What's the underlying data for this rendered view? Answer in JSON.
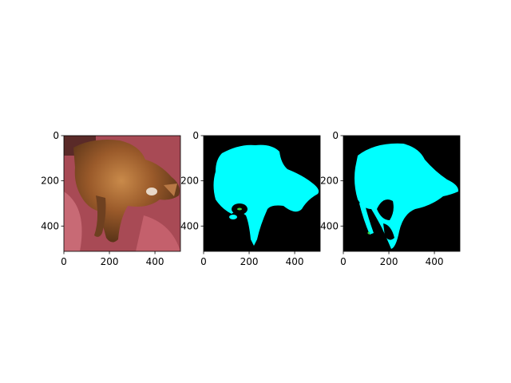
{
  "chart_data": [
    {
      "type": "image",
      "panel": "photo",
      "content": "cat-photo",
      "xlim": [
        0,
        512
      ],
      "ylim": [
        512,
        0
      ],
      "xticks": [
        0,
        200,
        400
      ],
      "yticks": [
        0,
        200,
        400
      ],
      "xtick_labels": [
        "0",
        "200",
        "400"
      ],
      "ytick_labels": [
        "0",
        "200",
        "400"
      ]
    },
    {
      "type": "image",
      "panel": "mask",
      "content": "segmentation-mask",
      "xlim": [
        0,
        512
      ],
      "ylim": [
        512,
        0
      ],
      "xticks": [
        0,
        200,
        400
      ],
      "yticks": [
        0,
        200,
        400
      ],
      "xtick_labels": [
        "0",
        "200",
        "400"
      ],
      "ytick_labels": [
        "0",
        "200",
        "400"
      ],
      "colors": {
        "background": "#000000",
        "foreground": "#00ffff",
        "minor": "#3cd13c"
      }
    },
    {
      "type": "image",
      "panel": "mask",
      "content": "segmentation-mask",
      "xlim": [
        0,
        512
      ],
      "ylim": [
        512,
        0
      ],
      "xticks": [
        0,
        200,
        400
      ],
      "yticks": [
        0,
        200,
        400
      ],
      "xtick_labels": [
        "0",
        "200",
        "400"
      ],
      "ytick_labels": [
        "0",
        "200",
        "400"
      ],
      "colors": {
        "background": "#000000",
        "foreground": "#00ffff",
        "minor": "#3cd13c"
      }
    }
  ]
}
